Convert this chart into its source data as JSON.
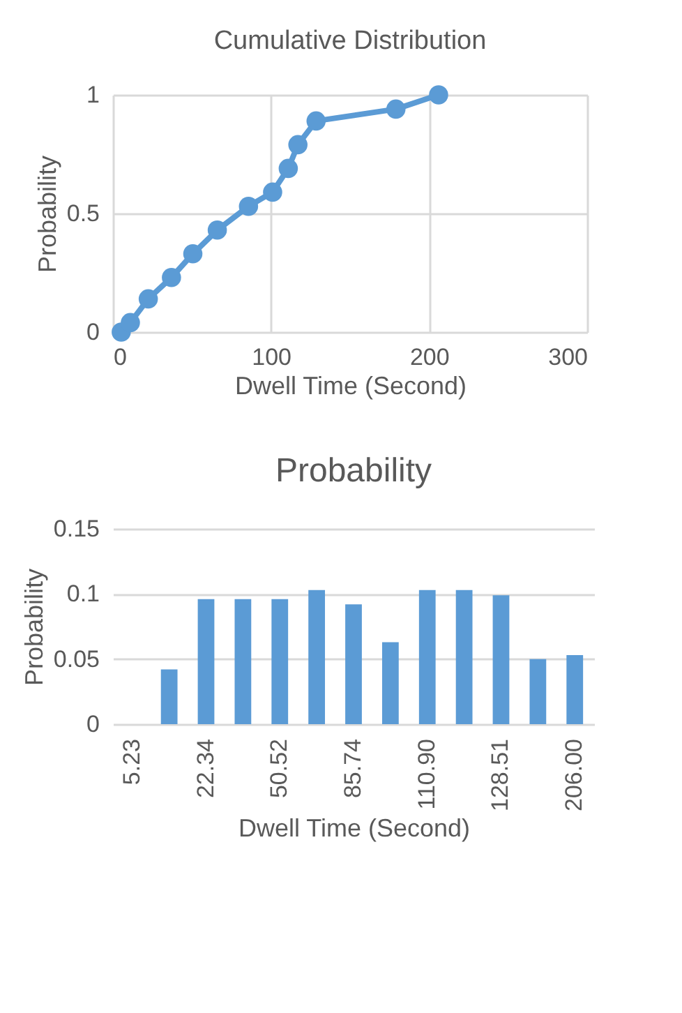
{
  "chart_data": [
    {
      "type": "line",
      "title": "Cumulative Distribution",
      "xlabel": "Dwell Time (Second)",
      "ylabel": "Probability",
      "x": [
        5.23,
        11,
        22.34,
        37,
        50.52,
        66,
        85.74,
        101,
        110.9,
        117,
        128.51,
        179,
        206.0
      ],
      "series": [
        {
          "color": "#5b9bd5",
          "values": [
            0,
            0.04,
            0.14,
            0.23,
            0.33,
            0.43,
            0.53,
            0.59,
            0.69,
            0.79,
            0.89,
            0.94,
            1.0
          ]
        }
      ],
      "xlim": [
        0,
        300
      ],
      "xticks": [
        0,
        100,
        200,
        300
      ],
      "ylim": [
        0,
        1
      ],
      "yticks": [
        0,
        0.5,
        1
      ],
      "grid": true,
      "marker": "circle",
      "line_style": "solid"
    },
    {
      "type": "bar",
      "title": "Probability",
      "xlabel": "Dwell Time (Second)",
      "ylabel": "Probability",
      "categories": [
        "5.23",
        null,
        "22.34",
        null,
        "50.52",
        null,
        "85.74",
        null,
        "110.90",
        null,
        "128.51",
        null,
        "206.00"
      ],
      "series": [
        {
          "color": "#5b9bd5",
          "values": [
            0,
            0.042,
            0.096,
            0.096,
            0.096,
            0.103,
            0.092,
            0.063,
            0.103,
            0.103,
            0.099,
            0.05,
            0.053
          ]
        }
      ],
      "ylim": [
        0,
        0.15
      ],
      "yticks": [
        0,
        0.05,
        0.1,
        0.15
      ],
      "grid": "y"
    }
  ]
}
